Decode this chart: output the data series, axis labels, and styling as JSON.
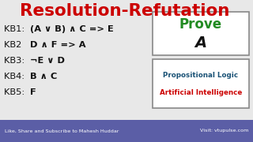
{
  "title": "Resolution-Refutation",
  "title_color": "#cc0000",
  "bg_color": "#e8e8e8",
  "kb_lines": [
    {
      "label": "KB1:  ",
      "formula": "(A ∨ B) ∧ C => E"
    },
    {
      "label": "KB2   ",
      "formula": "D ∧ F => A"
    },
    {
      "label": "KB3:  ",
      "formula": "¬E ∨ D"
    },
    {
      "label": "KB4:  ",
      "formula": "B ∧ C"
    },
    {
      "label": "KB5:  ",
      "formula": "F"
    }
  ],
  "prove_text": "Prove",
  "prove_var": "A",
  "prove_color": "#228B22",
  "prove_var_color": "#111111",
  "box_edge": "#888888",
  "sub1_text": "Propositional Logic",
  "sub2_text": "Artificial Intelligence",
  "sub1_color": "#1a5276",
  "sub2_color": "#cc0000",
  "footer_bg": "#5b5ea6",
  "footer_text_left": "Like, Share and Subscribe to Mahesh Huddar",
  "footer_text_right": "Visit: vtupulse.com",
  "footer_color": "#ffffff"
}
